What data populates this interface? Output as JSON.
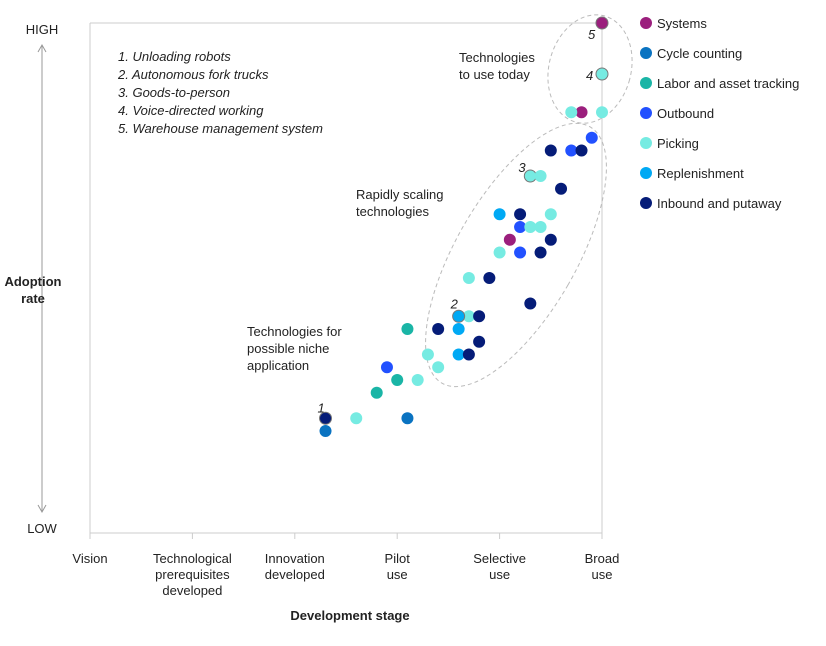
{
  "chart_data": {
    "type": "scatter",
    "xlabel": "Development stage",
    "ylabel": "Adoption rate",
    "y_tick_labels": {
      "high": "HIGH",
      "low": "LOW"
    },
    "x_categories": [
      [
        "Vision"
      ],
      [
        "Technological",
        "prerequisites",
        "developed"
      ],
      [
        "Innovation",
        "developed"
      ],
      [
        "Pilot",
        "use"
      ],
      [
        "Selective",
        "use"
      ],
      [
        "Broad",
        "use"
      ]
    ],
    "xlim": [
      0,
      5
    ],
    "ylim": [
      0,
      100
    ],
    "grid": false,
    "legend_placement": "right",
    "series": [
      {
        "name": "Systems",
        "color": "#9b1f7d",
        "points": [
          [
            5,
            100
          ],
          [
            4.8,
            82.5
          ],
          [
            4.1,
            57.5
          ]
        ]
      },
      {
        "name": "Cycle counting",
        "color": "#0a73c1",
        "points": [
          [
            3.1,
            22.5
          ],
          [
            2.3,
            20
          ]
        ]
      },
      {
        "name": "Labor and asset tracking",
        "color": "#1ab5a6",
        "points": [
          [
            3.1,
            40
          ],
          [
            3.0,
            30
          ],
          [
            2.8,
            27.5
          ]
        ]
      },
      {
        "name": "Outbound",
        "color": "#2251ff",
        "points": [
          [
            4.9,
            77.5
          ],
          [
            4.7,
            75
          ],
          [
            4.2,
            60
          ],
          [
            4.2,
            55
          ],
          [
            2.9,
            32.5
          ]
        ]
      },
      {
        "name": "Picking",
        "color": "#76ebe2",
        "points": [
          [
            5,
            90
          ],
          [
            4.7,
            82.5
          ],
          [
            5,
            82.5
          ],
          [
            4.3,
            70
          ],
          [
            4.4,
            70
          ],
          [
            4.5,
            62.5
          ],
          [
            4.3,
            60
          ],
          [
            4.4,
            60
          ],
          [
            4.0,
            55
          ],
          [
            3.7,
            50
          ],
          [
            3.7,
            42.5
          ],
          [
            3.3,
            35
          ],
          [
            3.4,
            32.5
          ],
          [
            3.2,
            30
          ],
          [
            2.6,
            22.5
          ]
        ]
      },
      {
        "name": "Replenishment",
        "color": "#00a9f4",
        "points": [
          [
            4.0,
            62.5
          ],
          [
            3.6,
            42.5
          ],
          [
            3.6,
            40
          ],
          [
            3.6,
            35
          ]
        ]
      },
      {
        "name": "Inbound and putaway",
        "color": "#051c78",
        "points": [
          [
            4.5,
            75
          ],
          [
            4.8,
            75
          ],
          [
            4.6,
            67.5
          ],
          [
            4.2,
            62.5
          ],
          [
            4.5,
            57.5
          ],
          [
            4.4,
            55
          ],
          [
            3.9,
            50
          ],
          [
            4.3,
            45
          ],
          [
            3.8,
            42.5
          ],
          [
            3.4,
            40
          ],
          [
            3.8,
            37.5
          ],
          [
            3.7,
            35
          ],
          [
            2.3,
            22.5
          ]
        ]
      }
    ],
    "numbered_points": [
      {
        "number": "1",
        "point": [
          2.3,
          22.5
        ]
      },
      {
        "number": "2",
        "point": [
          3.6,
          42.5
        ]
      },
      {
        "number": "3",
        "point": [
          4.3,
          70
        ]
      },
      {
        "number": "4",
        "point": [
          5,
          90
        ]
      },
      {
        "number": "5",
        "point": [
          5,
          100
        ]
      }
    ],
    "numbered_list": [
      "1.  Unloading robots",
      "2.  Autonomous fork trucks",
      "3.  Goods-to-person",
      "4.  Voice-directed working",
      "5.  Warehouse management system"
    ],
    "annotations": [
      [
        "Technologies",
        "to use today"
      ],
      [
        "Rapidly scaling",
        "technologies"
      ],
      [
        "Technologies for",
        "possible niche",
        "application"
      ]
    ]
  }
}
